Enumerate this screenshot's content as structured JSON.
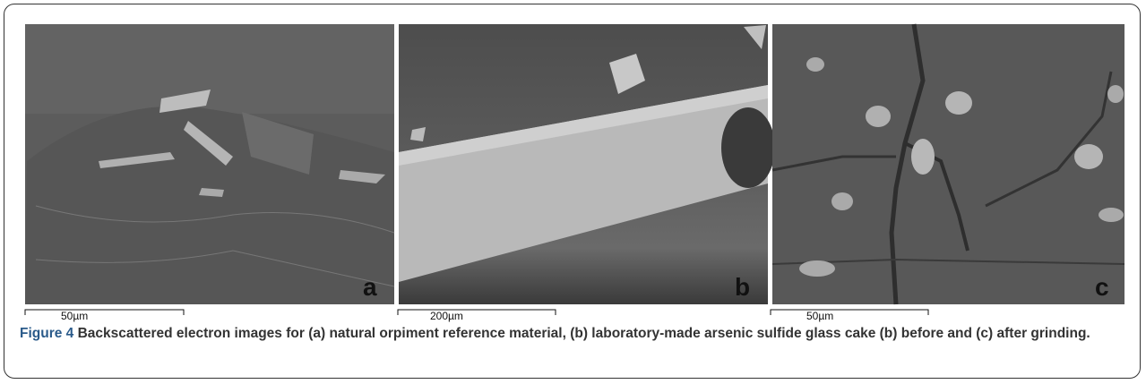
{
  "panels": [
    {
      "label": "a",
      "scale_label": "50µm"
    },
    {
      "label": "b",
      "scale_label": "200µm"
    },
    {
      "label": "c",
      "scale_label": "50µm"
    }
  ],
  "caption": {
    "figure_label": "Figure 4",
    "text": "Backscattered electron images for (a) natural orpiment reference material, (b) laboratory-made arsenic sulfide glass cake (b) before and (c) after grinding."
  }
}
